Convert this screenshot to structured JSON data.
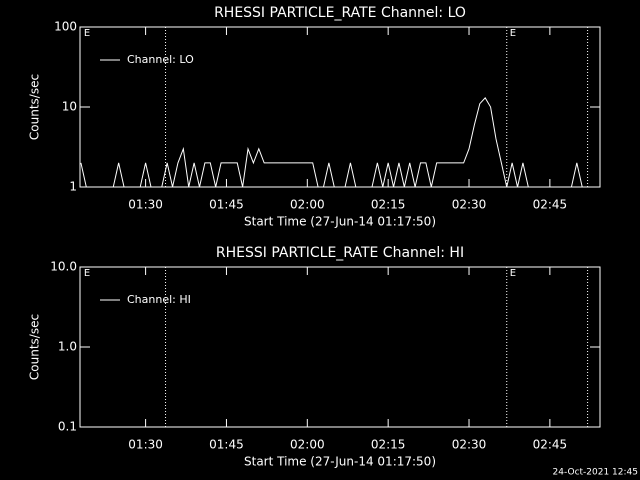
{
  "chart_data": [
    {
      "type": "line",
      "title": "RHESSI PARTICLE_RATE Channel: LO",
      "xlabel": "Start Time (27-Jun-14 01:17:50)",
      "ylabel": "Counts/sec",
      "log_y": true,
      "legend": "upper left",
      "xlim": [
        77.83,
        174.3
      ],
      "xticks": [
        {
          "value": 90,
          "label": "01:30"
        },
        {
          "value": 105,
          "label": "01:45"
        },
        {
          "value": 120,
          "label": "02:00"
        },
        {
          "value": 135,
          "label": "02:15"
        },
        {
          "value": 150,
          "label": "02:30"
        },
        {
          "value": 165,
          "label": "02:45"
        }
      ],
      "ylim": [
        1,
        100
      ],
      "yticks": [
        1,
        10,
        100
      ],
      "vlines": [
        93.7,
        157.0,
        172.0
      ],
      "annotations": [
        {
          "text": "E",
          "x": 78
        },
        {
          "text": "E",
          "x": 157
        }
      ],
      "x": [
        78,
        79,
        80,
        81,
        82,
        83,
        84,
        85,
        86,
        87,
        88,
        89,
        90,
        91,
        92,
        93,
        94,
        95,
        96,
        97,
        98,
        99,
        100,
        101,
        102,
        103,
        104,
        105,
        106,
        107,
        108,
        109,
        110,
        111,
        112,
        113,
        114,
        115,
        116,
        117,
        118,
        119,
        120,
        121,
        122,
        123,
        124,
        125,
        126,
        127,
        128,
        129,
        130,
        131,
        132,
        133,
        134,
        135,
        136,
        137,
        138,
        139,
        140,
        141,
        142,
        143,
        144,
        145,
        146,
        147,
        148,
        149,
        150,
        151,
        152,
        153,
        154,
        155,
        156,
        157,
        158,
        159,
        160,
        161,
        162,
        163,
        164,
        165,
        166,
        167,
        168,
        169,
        170,
        171,
        172,
        173,
        174
      ],
      "series": [
        {
          "name": "Channel: LO",
          "color": "#ffffff",
          "values": [
            2,
            1,
            1,
            1,
            1,
            1,
            1,
            2,
            1,
            1,
            1,
            1,
            2,
            1,
            1,
            1,
            2,
            1,
            2,
            3,
            1,
            2,
            1,
            2,
            2,
            1,
            2,
            2,
            2,
            2,
            1,
            3,
            2,
            3,
            2,
            2,
            2,
            2,
            2,
            2,
            2,
            2,
            2,
            2,
            1,
            1,
            2,
            1,
            1,
            1,
            2,
            1,
            1,
            1,
            1,
            2,
            1,
            2,
            1,
            2,
            1,
            2,
            1,
            2,
            2,
            1,
            2,
            2,
            2,
            2,
            2,
            2,
            3,
            6,
            11,
            13,
            10,
            4,
            2,
            1,
            2,
            1,
            2,
            1,
            1,
            1,
            1,
            1,
            1,
            1,
            1,
            1,
            2,
            1,
            1,
            1,
            1
          ]
        }
      ]
    },
    {
      "type": "line",
      "title": "RHESSI PARTICLE_RATE Channel: HI",
      "xlabel": "Start Time (27-Jun-14 01:17:50)",
      "ylabel": "Counts/sec",
      "log_y": true,
      "legend": "upper left",
      "xlim": [
        77.83,
        174.3
      ],
      "xticks": [
        {
          "value": 90,
          "label": "01:30"
        },
        {
          "value": 105,
          "label": "01:45"
        },
        {
          "value": 120,
          "label": "02:00"
        },
        {
          "value": 135,
          "label": "02:15"
        },
        {
          "value": 150,
          "label": "02:30"
        },
        {
          "value": 165,
          "label": "02:45"
        }
      ],
      "ylim": [
        0.1,
        10
      ],
      "yticks": [
        {
          "value": 0.1,
          "label": "0.1"
        },
        {
          "value": 1,
          "label": "1.0"
        },
        {
          "value": 10,
          "label": "10.0"
        }
      ],
      "vlines": [
        93.7,
        157.0,
        172.0
      ],
      "annotations": [
        {
          "text": "E",
          "x": 78
        },
        {
          "text": "E",
          "x": 157
        }
      ],
      "x": [],
      "series": [
        {
          "name": "Channel: HI",
          "color": "#ffffff",
          "values": []
        }
      ]
    }
  ],
  "footer": "24-Oct-2021 12:45"
}
